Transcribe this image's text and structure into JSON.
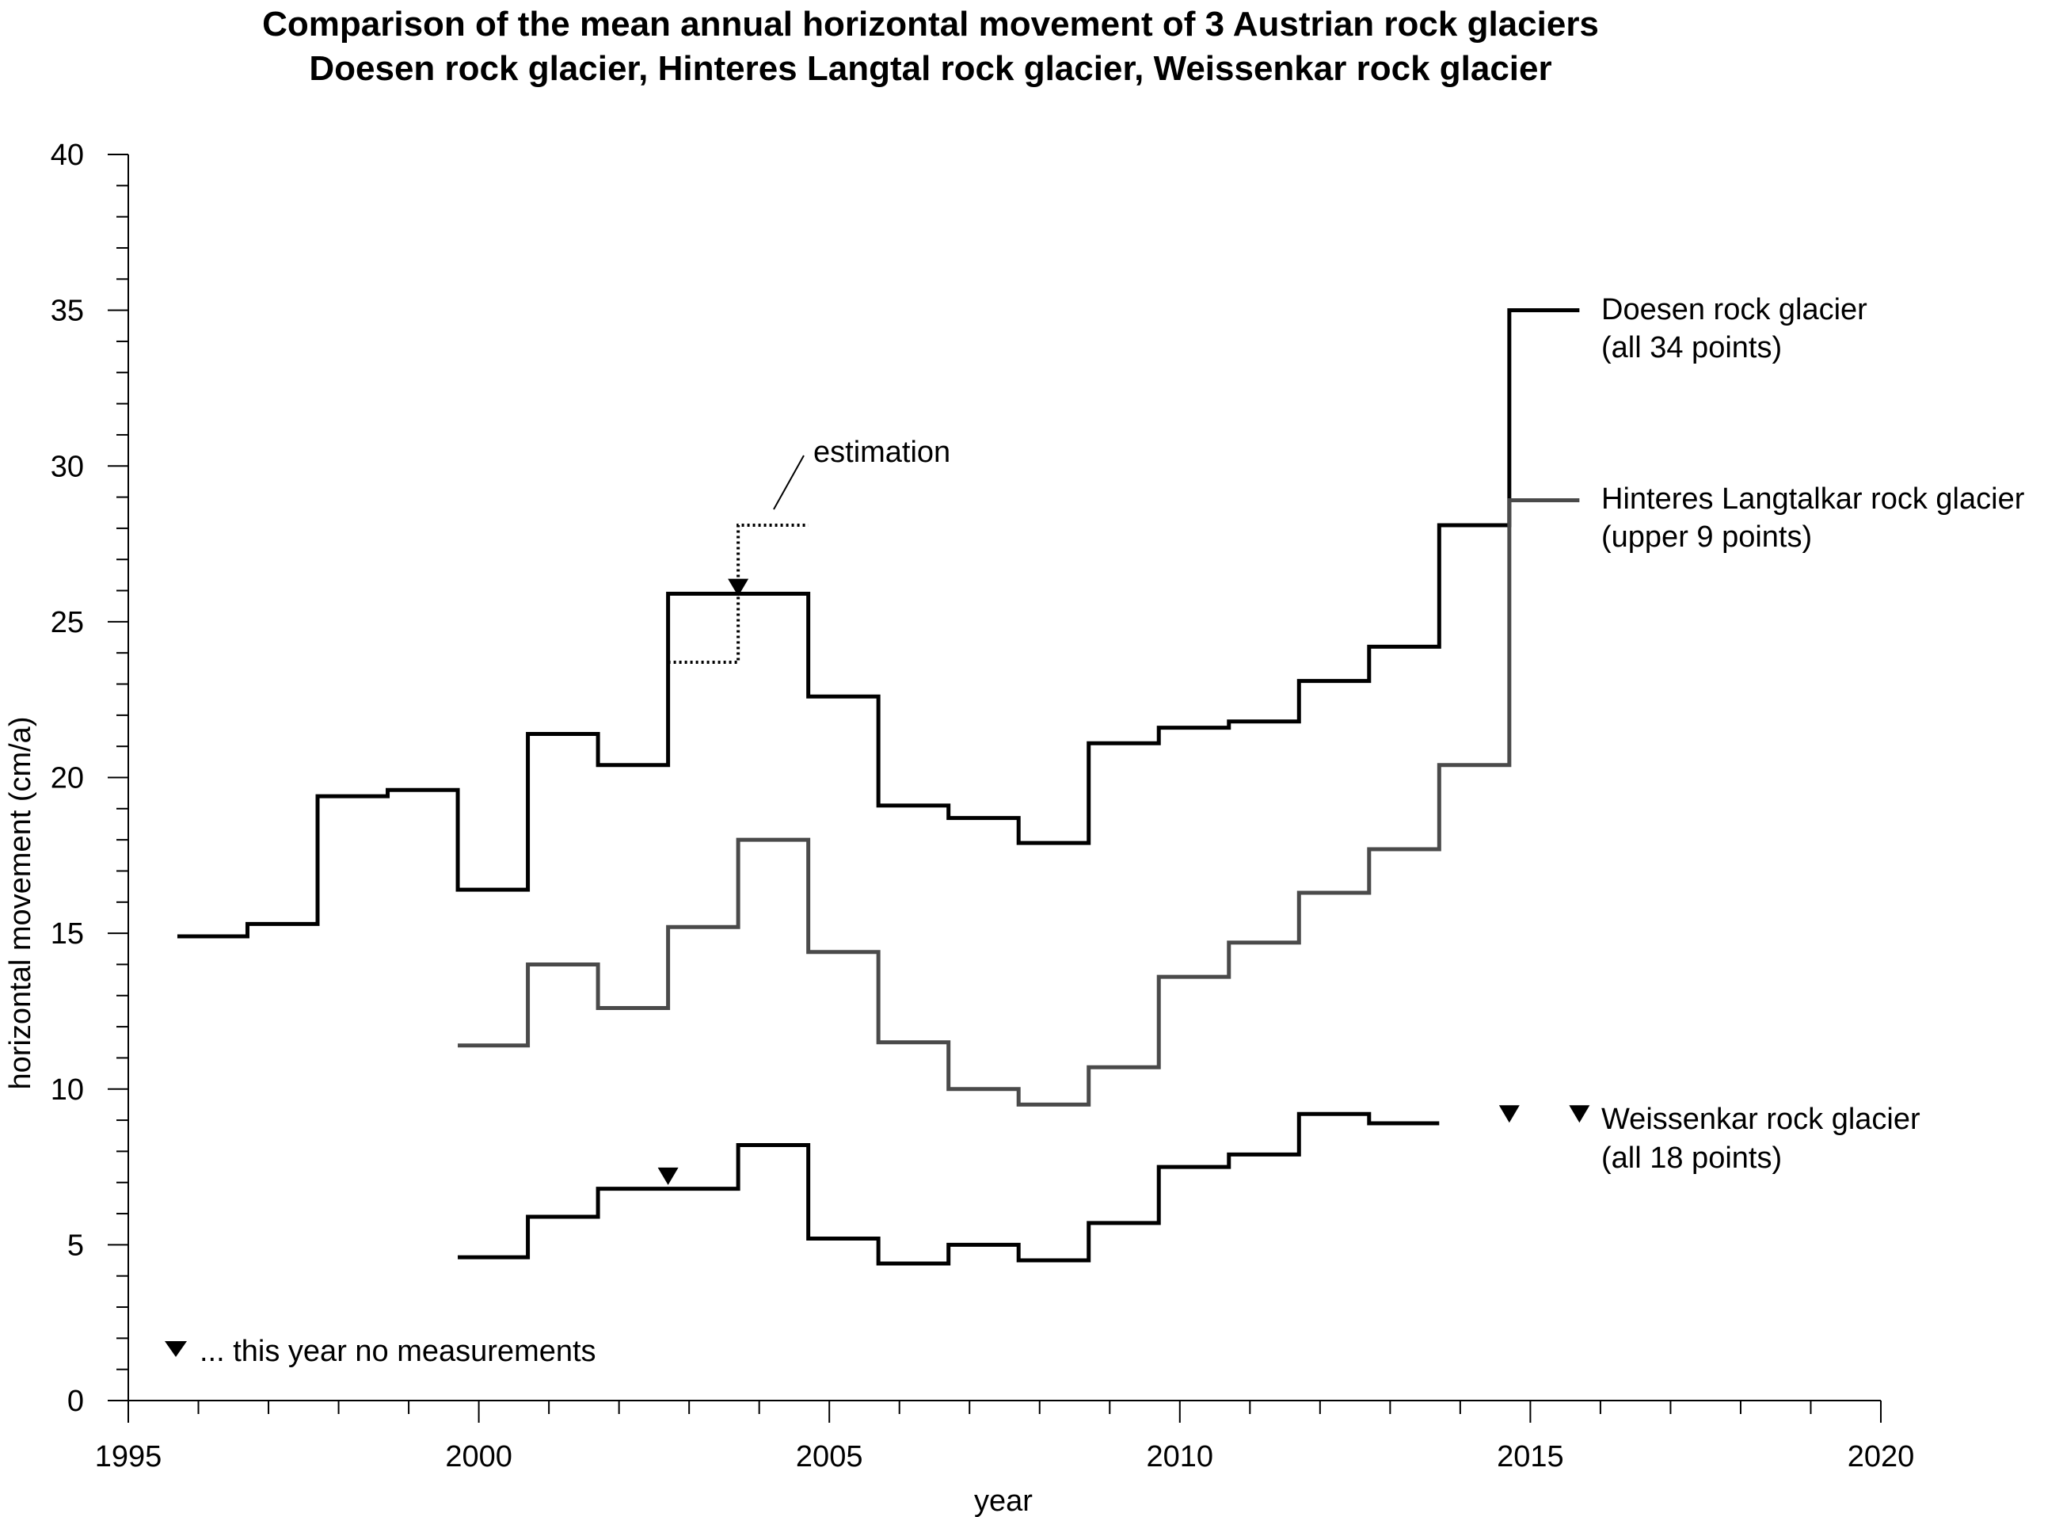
{
  "chart_data": {
    "type": "line",
    "subtype": "step",
    "title": "Comparison of the mean annual horizontal movement of 3 Austrian rock glaciers",
    "subtitle": "Doesen rock glacier, Hinteres Langtal rock glacier, Weissenkar rock glacier",
    "xlabel": "year",
    "ylabel": "horizontal movement (cm/a)",
    "xlim": [
      1995,
      2020
    ],
    "ylim": [
      0,
      40
    ],
    "x_ticks": [
      1995,
      2000,
      2005,
      2010,
      2015,
      2020
    ],
    "y_ticks": [
      0,
      5,
      10,
      15,
      20,
      25,
      30,
      35,
      40
    ],
    "x_tick_labels": [
      "1995",
      "2000",
      "2005",
      "2010",
      "2015",
      "2020"
    ],
    "y_tick_labels": [
      "0",
      "5",
      "10",
      "15",
      "20",
      "25",
      "30",
      "35",
      "40"
    ],
    "grid": false,
    "series": [
      {
        "name": "Doesen rock glacier",
        "name_line2": "(all 34 points)",
        "color": "#000000",
        "style": "solid",
        "points": [
          [
            1995.7,
            14.9
          ],
          [
            1996.7,
            15.3
          ],
          [
            1997.7,
            19.4
          ],
          [
            1998.7,
            19.6
          ],
          [
            1999.7,
            16.4
          ],
          [
            2000.7,
            21.4
          ],
          [
            2001.7,
            20.4
          ],
          [
            2002.7,
            25.9
          ],
          [
            2003.7,
            25.9
          ],
          [
            2004.7,
            22.6
          ],
          [
            2005.7,
            19.1
          ],
          [
            2006.7,
            18.7
          ],
          [
            2007.7,
            17.9
          ],
          [
            2008.7,
            21.1
          ],
          [
            2009.7,
            21.6
          ],
          [
            2010.7,
            21.8
          ],
          [
            2011.7,
            23.1
          ],
          [
            2012.7,
            24.2
          ],
          [
            2013.7,
            28.1
          ],
          [
            2014.7,
            35.0
          ]
        ],
        "end": 2015.7
      },
      {
        "name": "Hinteres Langtalkar rock glacier",
        "name_line2": "(upper 9 points)",
        "color": "#4a4a4a",
        "style": "solid",
        "points": [
          [
            1999.7,
            11.4
          ],
          [
            2000.7,
            14.0
          ],
          [
            2001.7,
            12.6
          ],
          [
            2002.7,
            15.2
          ],
          [
            2003.7,
            18.0
          ],
          [
            2004.7,
            14.4
          ],
          [
            2005.7,
            11.5
          ],
          [
            2006.7,
            10.0
          ],
          [
            2007.7,
            9.5
          ],
          [
            2008.7,
            10.7
          ],
          [
            2009.7,
            13.6
          ],
          [
            2010.7,
            14.7
          ],
          [
            2011.7,
            16.3
          ],
          [
            2012.7,
            17.7
          ],
          [
            2013.7,
            20.4
          ],
          [
            2014.7,
            28.9
          ]
        ],
        "end": 2015.7
      },
      {
        "name": "Weissenkar rock glacier",
        "name_line2": "(all 18 points)",
        "color": "#000000",
        "style": "solid",
        "points": [
          [
            1999.7,
            4.6
          ],
          [
            2000.7,
            5.9
          ],
          [
            2001.7,
            6.8
          ],
          [
            2002.7,
            6.8
          ],
          [
            2003.7,
            8.2
          ],
          [
            2004.7,
            5.2
          ],
          [
            2005.7,
            4.4
          ],
          [
            2006.7,
            5.0
          ],
          [
            2007.7,
            4.5
          ],
          [
            2008.7,
            5.7
          ],
          [
            2009.7,
            7.5
          ],
          [
            2010.7,
            7.9
          ],
          [
            2011.7,
            9.2
          ],
          [
            2012.7,
            8.9
          ]
        ],
        "end": 2013.7
      },
      {
        "name": "estimation",
        "color": "#000000",
        "style": "dotted",
        "points": [
          [
            2002.7,
            23.7
          ],
          [
            2003.7,
            28.1
          ]
        ],
        "end": 2004.7
      }
    ],
    "markers": [
      {
        "meaning": "no measurements",
        "x": 2003.7,
        "y": 26.1
      },
      {
        "meaning": "no measurements",
        "x": 2002.7,
        "y": 7.2
      },
      {
        "meaning": "no measurements",
        "x": 2014.7,
        "y": 9.2
      },
      {
        "meaning": "no measurements",
        "x": 2015.7,
        "y": 9.2
      }
    ],
    "legend_note": "... this year no measurements",
    "annotation": "estimation"
  }
}
